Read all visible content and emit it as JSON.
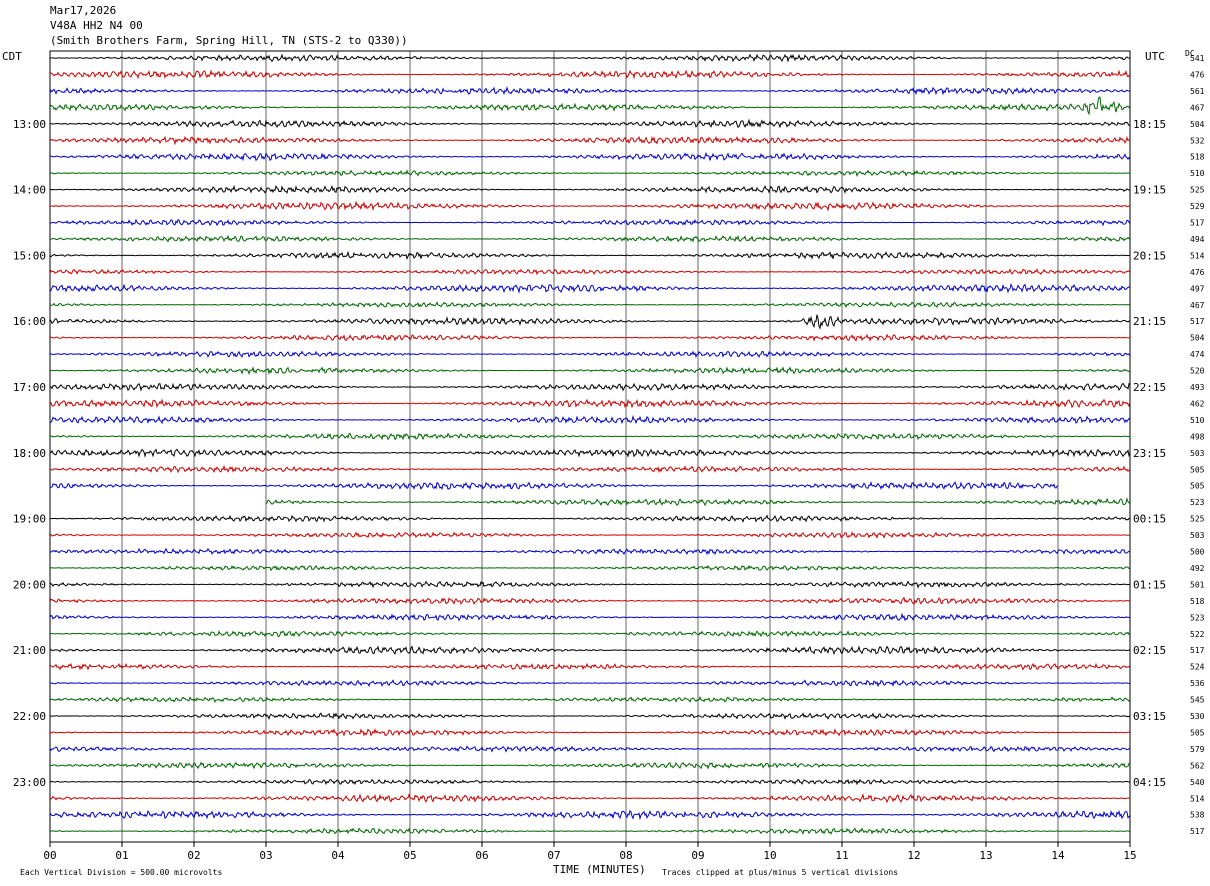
{
  "header": {
    "date": "Mar17,2026",
    "station": "V48A HH2 N4 00",
    "location": "(Smith Brothers Farm, Spring Hill, TN (STS-2 to Q330))"
  },
  "left_tz": "CDT",
  "right_tz": "UTC",
  "dc_label": "DC",
  "footer": {
    "vertical_division": "Each Vertical Division =  500.00 microvolts",
    "xlabel": "TIME (MINUTES)",
    "clip_note": "Traces clipped at plus/minus 5 vertical divisions"
  },
  "chart_data": {
    "type": "line",
    "title": "",
    "xlabel": "TIME (MINUTES)",
    "xlim": [
      0,
      15
    ],
    "x_ticks": [
      "00",
      "01",
      "02",
      "03",
      "04",
      "05",
      "06",
      "07",
      "08",
      "09",
      "10",
      "11",
      "12",
      "13",
      "14",
      "15"
    ],
    "grid": true,
    "trace_colors": [
      "#000000",
      "#cc0000",
      "#0000cc",
      "#006600"
    ],
    "left_hour_labels": [
      {
        "row": 4,
        "label": "13:00"
      },
      {
        "row": 8,
        "label": "14:00"
      },
      {
        "row": 12,
        "label": "15:00"
      },
      {
        "row": 16,
        "label": "16:00"
      },
      {
        "row": 20,
        "label": "17:00"
      },
      {
        "row": 24,
        "label": "18:00"
      },
      {
        "row": 28,
        "label": "19:00"
      },
      {
        "row": 32,
        "label": "20:00"
      },
      {
        "row": 36,
        "label": "21:00"
      },
      {
        "row": 40,
        "label": "22:00"
      },
      {
        "row": 44,
        "label": "23:00"
      }
    ],
    "right_hour_labels": [
      {
        "row": 4,
        "label": "18:15"
      },
      {
        "row": 8,
        "label": "19:15"
      },
      {
        "row": 12,
        "label": "20:15"
      },
      {
        "row": 16,
        "label": "21:15"
      },
      {
        "row": 20,
        "label": "22:15"
      },
      {
        "row": 24,
        "label": "23:15"
      },
      {
        "row": 28,
        "label": "00:15"
      },
      {
        "row": 32,
        "label": "01:15"
      },
      {
        "row": 36,
        "label": "02:15"
      },
      {
        "row": 40,
        "label": "03:15"
      },
      {
        "row": 44,
        "label": "04:15"
      }
    ],
    "dc_offsets": [
      "541",
      "476",
      "561",
      "467",
      "504",
      "532",
      "518",
      "510",
      "525",
      "529",
      "517",
      "494",
      "514",
      "476",
      "497",
      "467",
      "517",
      "504",
      "474",
      "520",
      "493",
      "462",
      "510",
      "498",
      "503",
      "505",
      "505",
      "523",
      "525",
      "503",
      "500",
      "492",
      "501",
      "518",
      "523",
      "522",
      "517",
      "524",
      "536",
      "545",
      "530",
      "505",
      "579",
      "562",
      "540",
      "514",
      "538",
      "517"
    ],
    "trace_extents": [
      {
        "row": 26,
        "end_min": 14.0
      },
      {
        "row": 27,
        "start_min": 3.0
      }
    ],
    "events": [
      {
        "row": 3,
        "at_min": 14.6,
        "note": "burst"
      },
      {
        "row": 16,
        "at_min": 10.7,
        "note": "burst"
      }
    ]
  }
}
